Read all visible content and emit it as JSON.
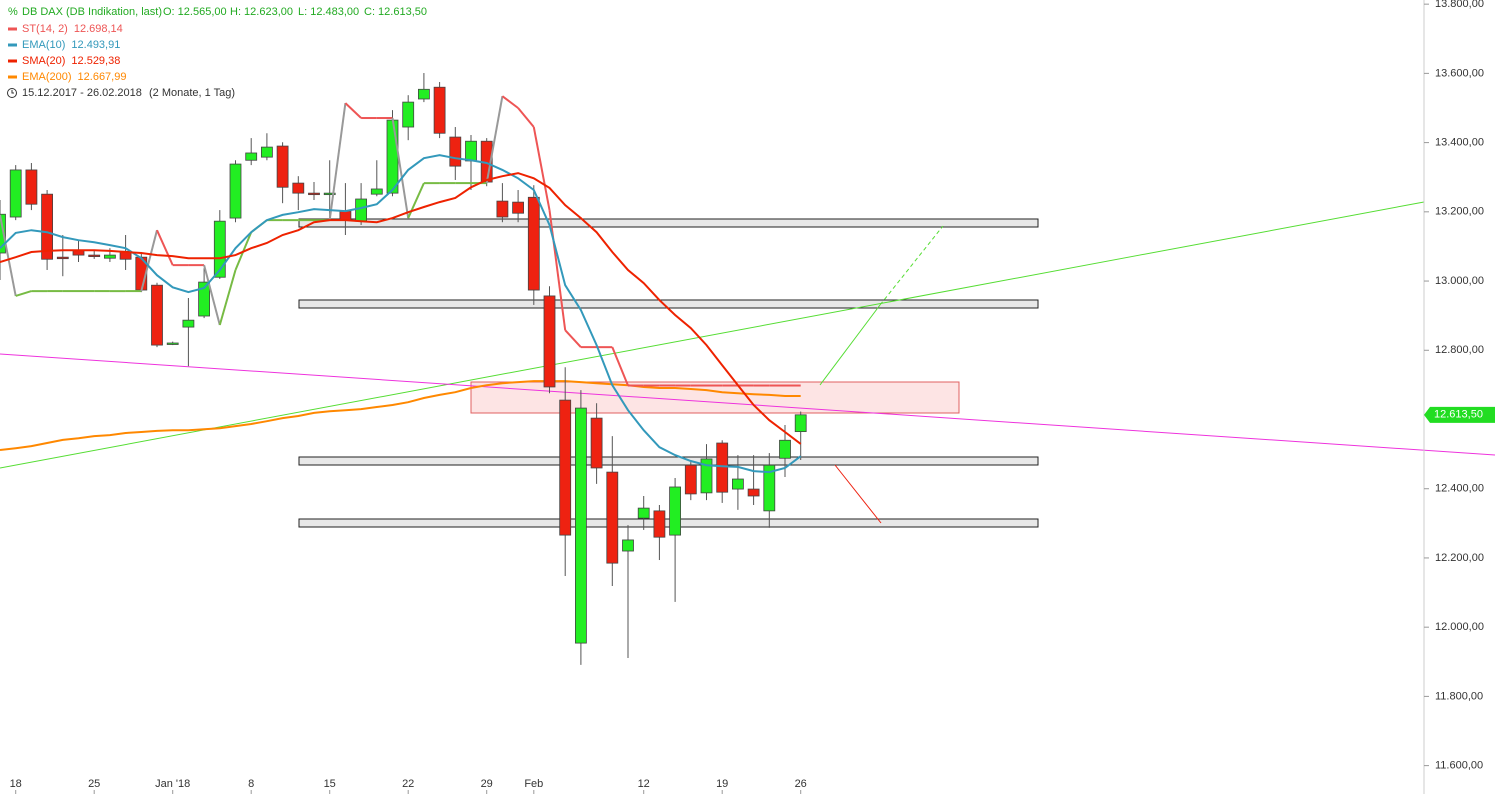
{
  "chart_data": {
    "type": "candlestick",
    "header": {
      "title": "DB DAX (DB Indikation, last)",
      "open": "O: 12.565,00",
      "high": "H: 12.623,00",
      "low": "L: 12.483,00",
      "close": "C: 12.613,50",
      "range": "15.12.2017 - 26.02.2018",
      "period": "(2 Monate, 1 Tag)"
    },
    "categories": [
      null,
      "18",
      null,
      null,
      null,
      null,
      "25",
      null,
      null,
      null,
      null,
      "Jan '18",
      null,
      null,
      null,
      null,
      "8",
      null,
      null,
      null,
      null,
      "15",
      null,
      null,
      null,
      null,
      "22",
      null,
      null,
      null,
      null,
      "29",
      null,
      null,
      "Feb",
      null,
      null,
      null,
      null,
      null,
      null,
      "12",
      null,
      null,
      null,
      null,
      "19",
      null,
      null,
      null,
      null,
      "26"
    ],
    "open": [
      13081,
      13185,
      13321,
      13251,
      13069,
      13089,
      13075,
      13066,
      13086,
      13069,
      12988,
      12818,
      12867,
      12899,
      13011,
      13182,
      13349,
      13358,
      13390,
      13283,
      13254,
      13251,
      13202,
      13173,
      13251,
      13254,
      13445,
      13526,
      13560,
      13416,
      13347,
      13404,
      13231,
      13228,
      13242,
      12957,
      12656,
      11954,
      12604,
      12448,
      12220,
      12315,
      12336,
      12266,
      12468,
      12388,
      12532,
      12399,
      12399,
      12336,
      12488,
      12565
    ],
    "high": [
      13234,
      13335,
      13341,
      13263,
      13133,
      13118,
      13089,
      13095,
      13133,
      13084,
      12995,
      12825,
      12951,
      13037,
      13205,
      13349,
      13413,
      13427,
      13401,
      13303,
      13286,
      13349,
      13283,
      13283,
      13349,
      13494,
      13537,
      13601,
      13575,
      13445,
      13422,
      13413,
      13283,
      13263,
      13277,
      12985,
      12751,
      12685,
      12647,
      12552,
      12295,
      12379,
      12353,
      12431,
      12477,
      12529,
      12540,
      12497,
      12497,
      12503,
      12584,
      12623
    ],
    "low": [
      13003,
      13176,
      13205,
      13032,
      13014,
      13055,
      13064,
      13055,
      13032,
      12968,
      12809,
      12815,
      12754,
      12893,
      13006,
      13170,
      13335,
      13349,
      13225,
      13205,
      13234,
      13176,
      13133,
      13162,
      13245,
      13245,
      13407,
      13517,
      13413,
      13292,
      13263,
      13274,
      13170,
      13170,
      12931,
      12676,
      12148,
      11891,
      12414,
      12119,
      11911,
      12281,
      12194,
      12073,
      12367,
      12367,
      12359,
      12339,
      12353,
      12287,
      12434,
      12483
    ],
    "close": [
      13193,
      13321,
      13222,
      13063,
      13066,
      13075,
      13072,
      13075,
      13063,
      12974,
      12815,
      12821,
      12887,
      12997,
      13173,
      13338,
      13370,
      13387,
      13271,
      13254,
      13251,
      13254,
      13176,
      13237,
      13266,
      13465,
      13517,
      13554,
      13427,
      13332,
      13404,
      13286,
      13185,
      13196,
      12974,
      12694,
      12266,
      12633,
      12460,
      12185,
      12252,
      12344,
      12260,
      12405,
      12385,
      12486,
      12390,
      12428,
      12379,
      12468,
      12540,
      12613.5
    ],
    "up_color": "#22ee22",
    "down_color": "#ee2211",
    "ylim": [
      11518,
      13812
    ],
    "yticks": [
      {
        "value": 13800,
        "label": "13.800,00"
      },
      {
        "value": 13600,
        "label": "13.600,00"
      },
      {
        "value": 13400,
        "label": "13.400,00"
      },
      {
        "value": 13200,
        "label": "13.200,00"
      },
      {
        "value": 13000,
        "label": "13.000,00"
      },
      {
        "value": 12800,
        "label": "12.800,00"
      },
      {
        "value": 12400,
        "label": "12.400,00"
      },
      {
        "value": 12200,
        "label": "12.200,00"
      },
      {
        "value": 12000,
        "label": "12.000,00"
      },
      {
        "value": 11800,
        "label": "11.800,00"
      },
      {
        "value": 11600,
        "label": "11.600,00"
      }
    ],
    "last_price": {
      "value": 12613.5,
      "label": "12.613,50"
    },
    "indicators": [
      {
        "name": "ST(14, 2)",
        "value_label": "12.698,14",
        "color": "#ee5555",
        "values": [
          13191,
          12957,
          12971,
          12971,
          12971,
          12971,
          12971,
          12971,
          12971,
          12971,
          13147,
          13046,
          13046,
          13046,
          12873,
          13032,
          13141,
          13176,
          13176,
          13176,
          13176,
          13176,
          13514,
          13471,
          13471,
          13471,
          13182,
          13283,
          13283,
          13283,
          13283,
          13283,
          13534,
          13500,
          13445,
          13205,
          12858,
          12809,
          12809,
          12809,
          12698.14,
          12698.14,
          12698.14,
          12698.14,
          12698.14,
          12698.14,
          12698.14,
          12698.14,
          12698.14,
          12698.14,
          12698.14,
          12698.14
        ],
        "segment_colors": [
          "#999999",
          "#77bb44",
          "#77bb44",
          "#77bb44",
          "#77bb44",
          "#77bb44",
          "#77bb44",
          "#77bb44",
          "#77bb44",
          "#999999",
          "#ee5555",
          "#ee5555",
          "#ee5555",
          "#999999",
          "#77bb44",
          "#77bb44",
          "#77bb44",
          "#77bb44",
          "#77bb44",
          "#77bb44",
          "#77bb44",
          "#999999",
          "#ee5555",
          "#ee5555",
          "#ee5555",
          "#999999",
          "#77bb44",
          "#77bb44",
          "#77bb44",
          "#77bb44",
          "#77bb44",
          "#999999",
          "#ee5555",
          "#ee5555",
          "#ee5555",
          "#ee5555",
          "#ee5555",
          "#ee5555",
          "#ee5555",
          "#ee5555",
          "#ee5555",
          "#ee5555",
          "#ee5555",
          "#ee5555",
          "#ee5555",
          "#ee5555",
          "#ee5555",
          "#ee5555",
          "#ee5555",
          "#ee5555",
          "#ee5555"
        ]
      },
      {
        "name": "EMA(10)",
        "value_label": "12.493,91",
        "color": "#3399bb",
        "values": [
          13095,
          13139,
          13147,
          13141,
          13127,
          13118,
          13112,
          13104,
          13095,
          13066,
          13017,
          12982,
          12968,
          12980,
          13032,
          13095,
          13141,
          13176,
          13191,
          13199,
          13208,
          13205,
          13202,
          13211,
          13222,
          13263,
          13321,
          13355,
          13364,
          13355,
          13349,
          13341,
          13321,
          13297,
          13263,
          13162,
          12988,
          12916,
          12815,
          12699,
          12627,
          12569,
          12520,
          12497,
          12480,
          12468,
          12465,
          12463,
          12451,
          12448,
          12460,
          12493.91
        ]
      },
      {
        "name": "SMA(20)",
        "value_label": "12.529,38",
        "color": "#ee2200",
        "values": [
          13055,
          13069,
          13084,
          13087,
          13089,
          13089,
          13089,
          13087,
          13084,
          13081,
          13075,
          13072,
          13066,
          13066,
          13066,
          13075,
          13095,
          13110,
          13133,
          13147,
          13170,
          13176,
          13176,
          13173,
          13170,
          13182,
          13199,
          13214,
          13228,
          13240,
          13271,
          13292,
          13303,
          13312,
          13297,
          13269,
          13219,
          13182,
          13141,
          13084,
          13032,
          12994,
          12945,
          12902,
          12864,
          12815,
          12757,
          12699,
          12642,
          12598,
          12564,
          12529.38
        ]
      },
      {
        "name": "EMA(200)",
        "value_label": "12.667,99",
        "color": "#ff8800",
        "values": [
          12512,
          12517,
          12523,
          12532,
          12541,
          12546,
          12552,
          12555,
          12561,
          12564,
          12567,
          12569,
          12569,
          12572,
          12575,
          12581,
          12587,
          12595,
          12604,
          12610,
          12619,
          12624,
          12627,
          12630,
          12636,
          12642,
          12650,
          12662,
          12671,
          12679,
          12691,
          12699,
          12705,
          12708,
          12711,
          12711,
          12711,
          12708,
          12705,
          12702,
          12699,
          12694,
          12691,
          12691,
          12688,
          12685,
          12679,
          12676,
          12673,
          12671,
          12668,
          12667.99
        ]
      }
    ]
  }
}
